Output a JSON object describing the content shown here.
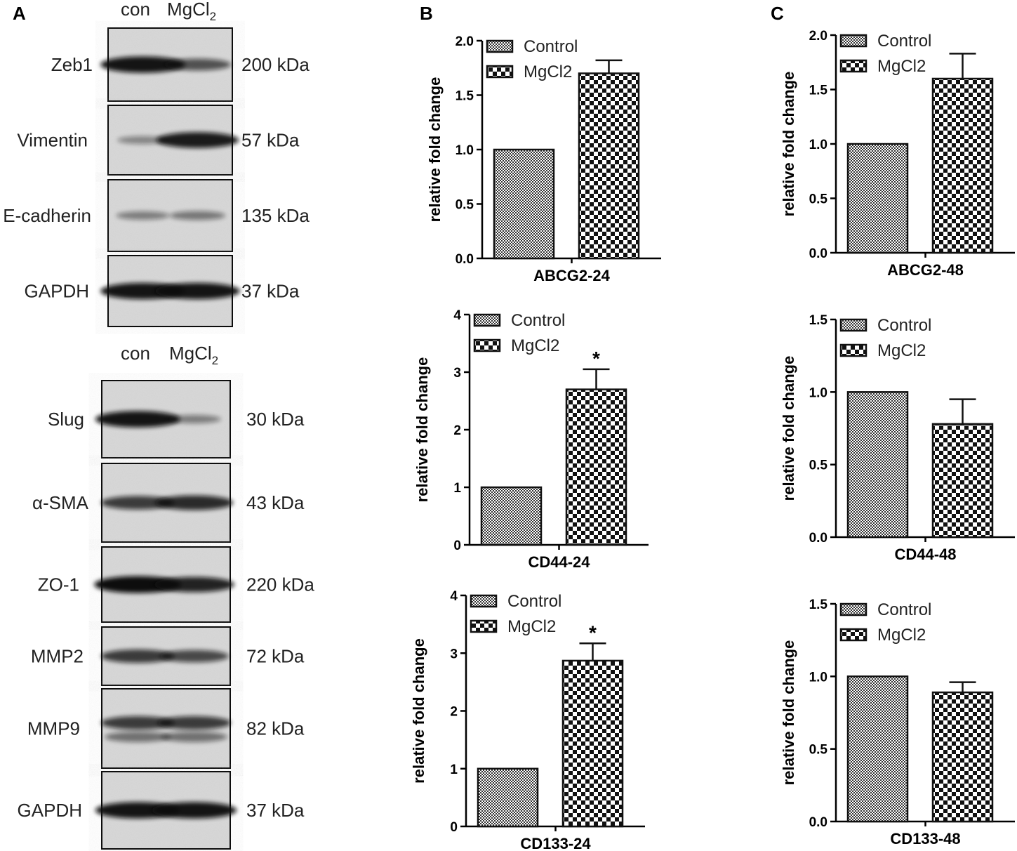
{
  "panels": {
    "a": "A",
    "b": "B",
    "c": "C"
  },
  "blots": {
    "lanes_top": {
      "con": "con",
      "mg": "MgCl",
      "mg_sub": "2"
    },
    "lanes_bottom": {
      "con": "con",
      "mg": "MgCl",
      "mg_sub": "2"
    },
    "items": [
      {
        "label": "Zeb1",
        "kda": "200 kDa",
        "con": 0.95,
        "mg": 0.55
      },
      {
        "label": "Vimentin",
        "kda": "57 kDa",
        "con": 0.2,
        "mg": 0.9
      },
      {
        "label": "E-cadherin",
        "kda": "135 kDa",
        "con": 0.25,
        "mg": 0.3
      },
      {
        "label": "GAPDH",
        "kda": "37 kDa",
        "con": 0.95,
        "mg": 0.95
      },
      {
        "label": "Slug",
        "kda": "30 kDa",
        "con": 0.95,
        "mg": 0.25
      },
      {
        "label": "α-SMA",
        "kda": "43 kDa",
        "con": 0.7,
        "mg": 0.8
      },
      {
        "label": "ZO-1",
        "kda": "220 kDa",
        "con": 1.0,
        "mg": 0.85
      },
      {
        "label": "MMP2",
        "kda": "72 kDa",
        "con": 0.7,
        "mg": 0.6
      },
      {
        "label": "MMP9",
        "kda": "82 kDa",
        "con": 0.7,
        "mg": 0.7
      },
      {
        "label": "GAPDH",
        "kda": "37 kDa",
        "con": 0.95,
        "mg": 0.95
      }
    ]
  },
  "colors": {
    "bar_fill": "#ffffff",
    "pattern_ink": "#111111",
    "axis": "#000000",
    "blot_bg": "#d8d8d8",
    "band": "#111111"
  },
  "chart_data": [
    {
      "type": "bar",
      "panel": "B",
      "categories": [
        "Control",
        "MgCl2"
      ],
      "values": [
        1.0,
        1.7
      ],
      "errors": [
        0,
        0.12
      ],
      "significance": [
        "",
        ""
      ],
      "xlabel": "ABCG2-24",
      "ylabel": "relative fold change",
      "ylim": [
        0,
        2.0
      ],
      "yticks": [
        "0.0",
        "0.5",
        "1.0",
        "1.5",
        "2.0"
      ],
      "legend": [
        "Control",
        "MgCl2"
      ],
      "legend_position": "top-left"
    },
    {
      "type": "bar",
      "panel": "B",
      "categories": [
        "Control",
        "MgCl2"
      ],
      "values": [
        1.0,
        2.7
      ],
      "errors": [
        0,
        0.35
      ],
      "significance": [
        "",
        "*"
      ],
      "xlabel": "CD44-24",
      "ylabel": "relative fold change",
      "ylim": [
        0,
        4
      ],
      "yticks": [
        "0",
        "1",
        "2",
        "3",
        "4"
      ],
      "legend": [
        "Control",
        "MgCl2"
      ],
      "legend_position": "top-left"
    },
    {
      "type": "bar",
      "panel": "B",
      "categories": [
        "Control",
        "MgCl2"
      ],
      "values": [
        1.0,
        2.87
      ],
      "errors": [
        0,
        0.3
      ],
      "significance": [
        "",
        "*"
      ],
      "xlabel": "CD133-24",
      "ylabel": "relative fold change",
      "ylim": [
        0,
        4
      ],
      "yticks": [
        "0",
        "1",
        "2",
        "3",
        "4"
      ],
      "legend": [
        "Control",
        "MgCl2"
      ],
      "legend_position": "top-left"
    },
    {
      "type": "bar",
      "panel": "C",
      "categories": [
        "Control",
        "MgCl2"
      ],
      "values": [
        1.0,
        1.6
      ],
      "errors": [
        0,
        0.23
      ],
      "significance": [
        "",
        ""
      ],
      "xlabel": "ABCG2-48",
      "ylabel": "relative fold change",
      "ylim": [
        0,
        2.0
      ],
      "yticks": [
        "0.0",
        "0.5",
        "1.0",
        "1.5",
        "2.0"
      ],
      "legend": [
        "Control",
        "MgCl2"
      ],
      "legend_position": "top-left"
    },
    {
      "type": "bar",
      "panel": "C",
      "categories": [
        "Control",
        "MgCl2"
      ],
      "values": [
        1.0,
        0.78
      ],
      "errors": [
        0,
        0.17
      ],
      "significance": [
        "",
        ""
      ],
      "xlabel": "CD44-48",
      "ylabel": "relative fold change",
      "ylim": [
        0,
        1.5
      ],
      "yticks": [
        "0.0",
        "0.5",
        "1.0",
        "1.5"
      ],
      "legend": [
        "Control",
        "MgCl2"
      ],
      "legend_position": "top-left"
    },
    {
      "type": "bar",
      "panel": "C",
      "categories": [
        "Control",
        "MgCl2"
      ],
      "values": [
        1.0,
        0.89
      ],
      "errors": [
        0,
        0.07
      ],
      "significance": [
        "",
        ""
      ],
      "xlabel": "CD133-48",
      "ylabel": "relative fold change",
      "ylim": [
        0,
        1.5
      ],
      "yticks": [
        "0.0",
        "0.5",
        "1.0",
        "1.5"
      ],
      "legend": [
        "Control",
        "MgCl2"
      ],
      "legend_position": "top-left"
    }
  ]
}
